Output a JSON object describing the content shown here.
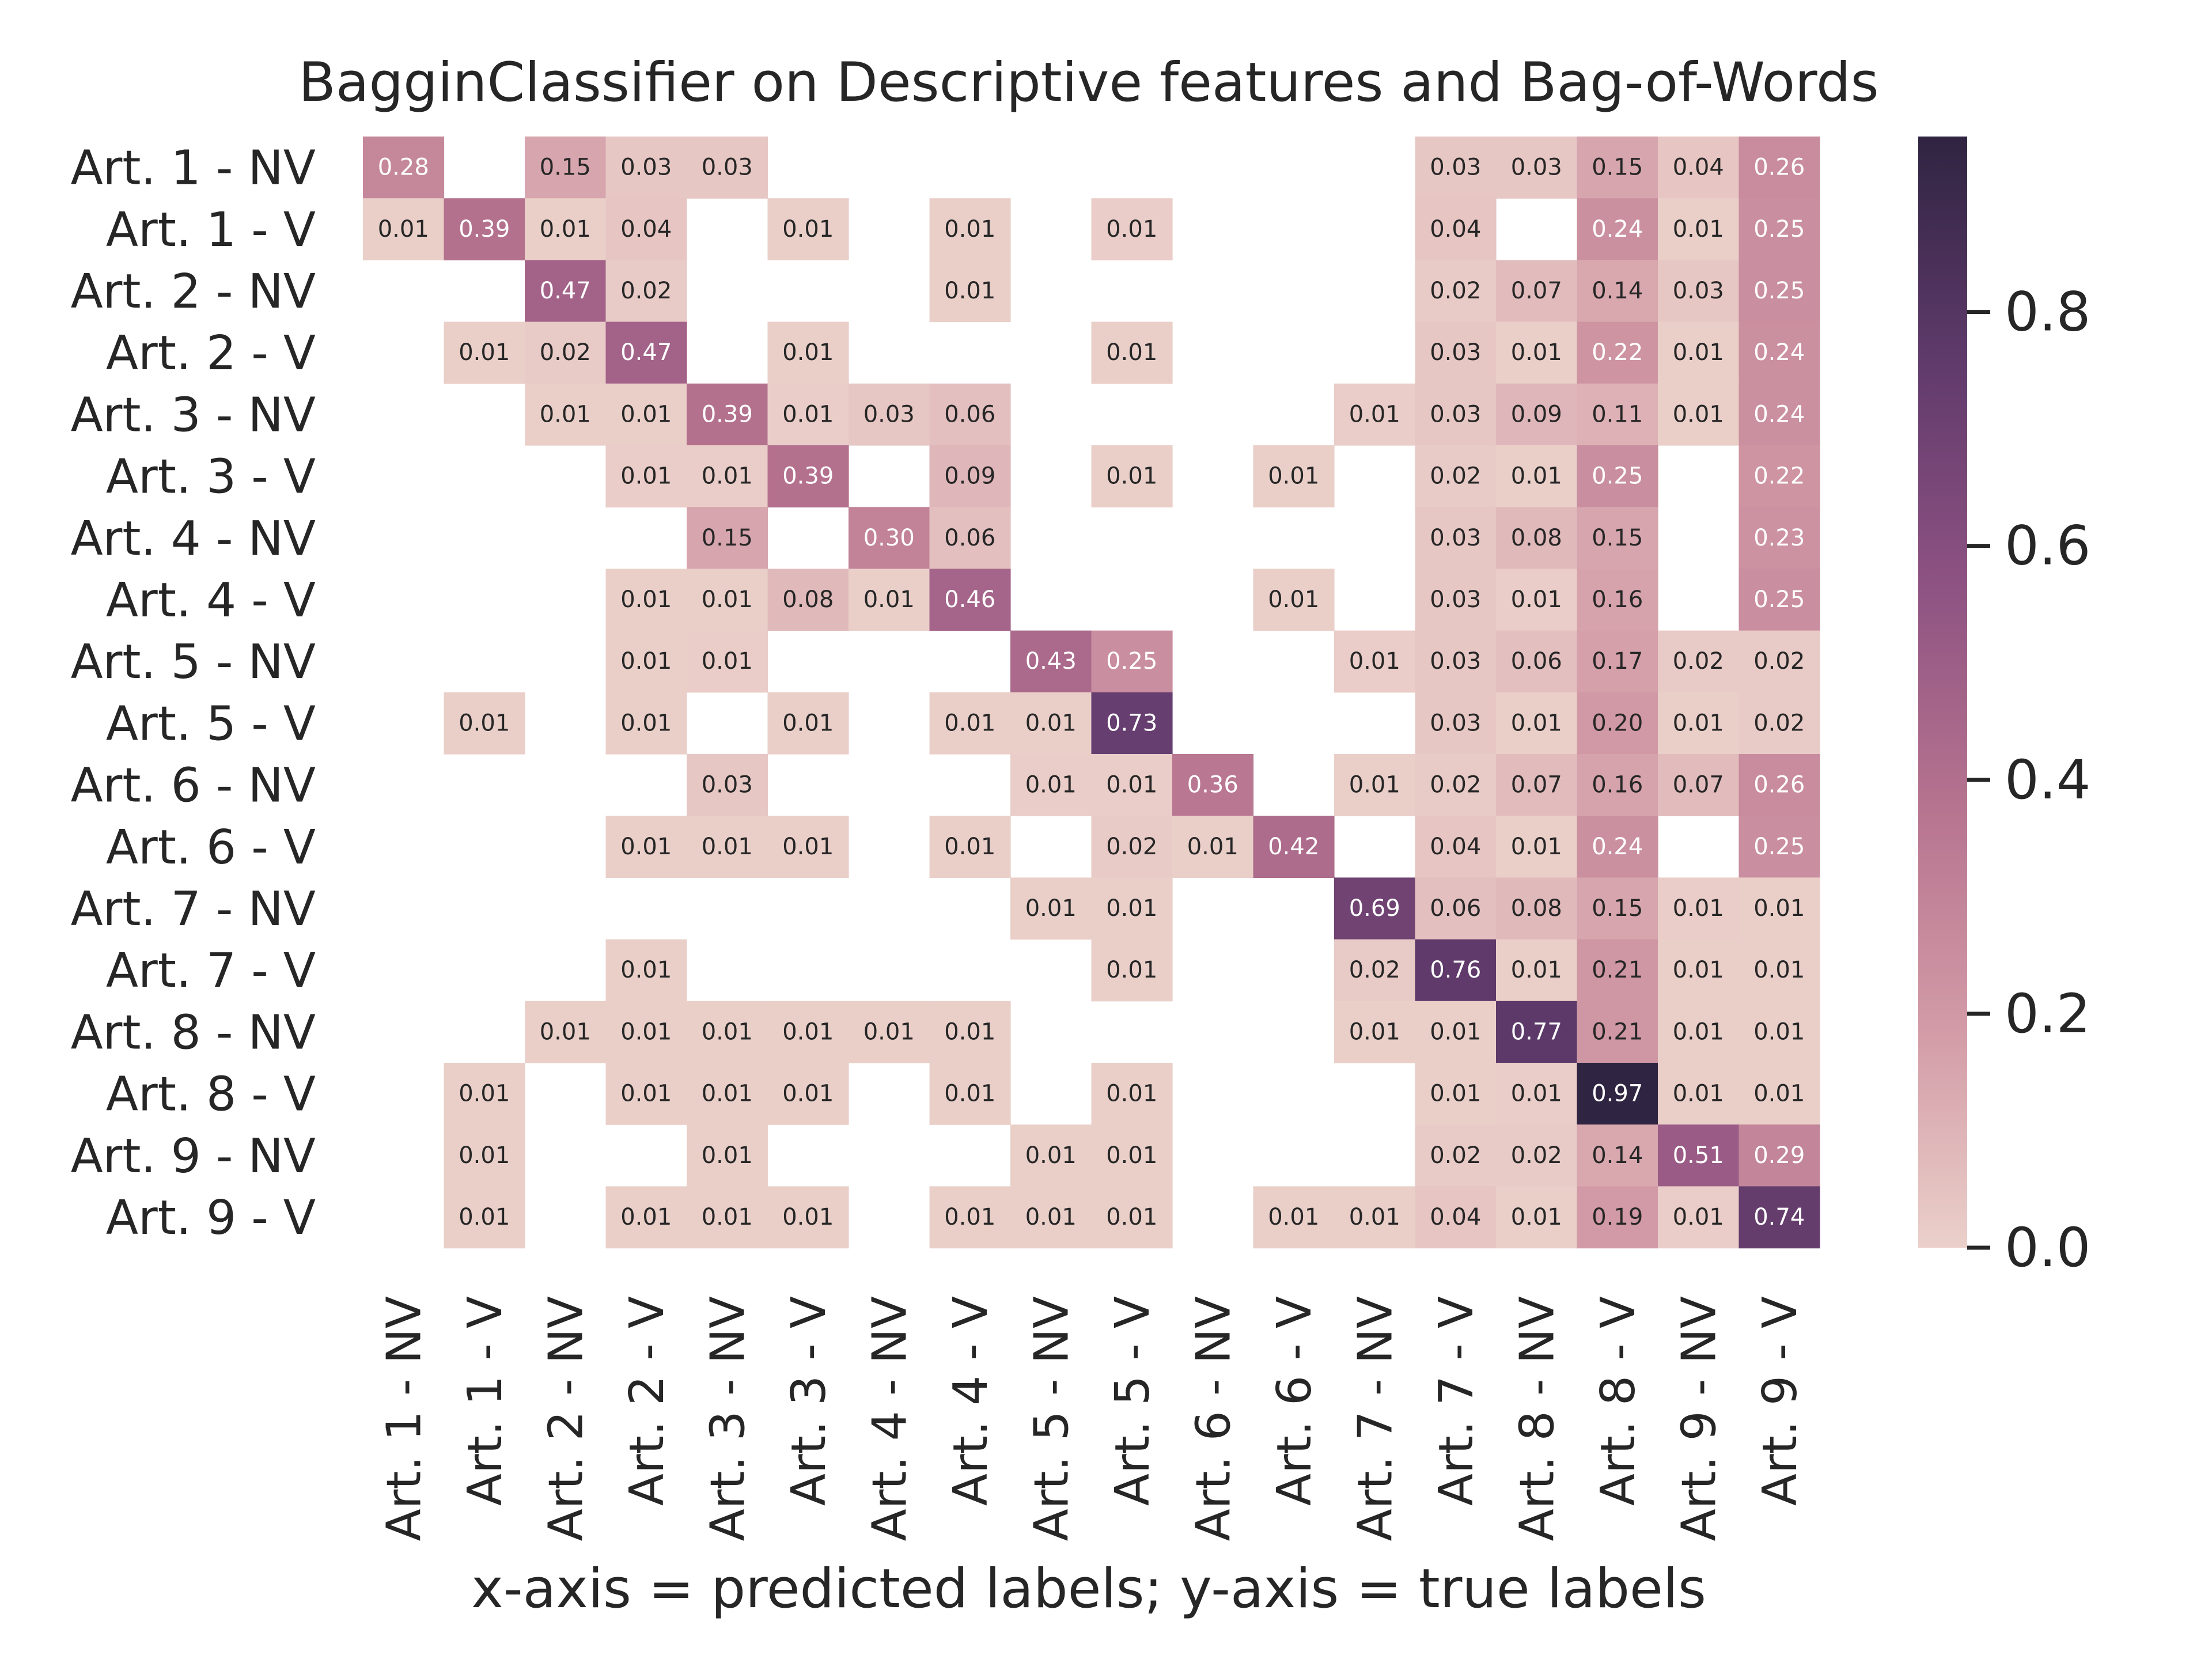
{
  "chart_data": {
    "type": "heatmap",
    "title": "BagginClassifier on Descriptive features and Bag-of-Words",
    "xlabel": "x-axis = predicted labels; y-axis = true labels",
    "ylabel": "",
    "labels": [
      "Art. 1 - NV",
      "Art. 1 - V",
      "Art. 2 - NV",
      "Art. 2 - V",
      "Art. 3 - NV",
      "Art. 3 - V",
      "Art. 4 - NV",
      "Art. 4 - V",
      "Art. 5 - NV",
      "Art. 5 - V",
      "Art. 6 - NV",
      "Art. 6 - V",
      "Art. 7 - NV",
      "Art. 7 - V",
      "Art. 8 - NV",
      "Art. 8 - V",
      "Art. 9 - NV",
      "Art. 9 - V"
    ],
    "colorbar": {
      "range": [
        0,
        0.95
      ],
      "ticks": [
        "0.0",
        "0.2",
        "0.4",
        "0.6",
        "0.8"
      ]
    },
    "colormap": [
      "#ebd0ca",
      "#d29aa6",
      "#b6738f",
      "#8d5282",
      "#5f3a6b",
      "#2f2441"
    ],
    "blank_color": "#ffffff",
    "matrix": [
      [
        0.28,
        null,
        0.15,
        0.03,
        0.03,
        null,
        null,
        null,
        null,
        null,
        null,
        null,
        null,
        0.03,
        0.03,
        0.15,
        0.04,
        0.26
      ],
      [
        0.005,
        0.39,
        0.005,
        0.04,
        null,
        0.005,
        null,
        0.005,
        null,
        0.01,
        null,
        null,
        null,
        0.04,
        null,
        0.24,
        0.005,
        0.25
      ],
      [
        null,
        null,
        0.47,
        0.02,
        null,
        null,
        null,
        0.005,
        null,
        null,
        null,
        null,
        null,
        0.02,
        0.07,
        0.14,
        0.03,
        0.25
      ],
      [
        null,
        0.005,
        0.02,
        0.47,
        null,
        0.005,
        null,
        null,
        null,
        0.005,
        null,
        null,
        null,
        0.03,
        0.005,
        0.22,
        0.005,
        0.24
      ],
      [
        null,
        null,
        0.005,
        0.005,
        0.39,
        0.01,
        0.03,
        0.06,
        null,
        null,
        null,
        null,
        0.01,
        0.03,
        0.09,
        0.11,
        0.005,
        0.24
      ],
      [
        null,
        null,
        null,
        0.01,
        0.01,
        0.39,
        null,
        0.09,
        null,
        0.005,
        null,
        0.005,
        null,
        0.02,
        0.005,
        0.25,
        null,
        0.22
      ],
      [
        null,
        null,
        null,
        null,
        0.15,
        null,
        0.3,
        0.06,
        null,
        null,
        null,
        null,
        null,
        0.03,
        0.08,
        0.15,
        null,
        0.23
      ],
      [
        null,
        null,
        null,
        0.005,
        0.005,
        0.08,
        0.005,
        0.46,
        null,
        null,
        null,
        0.005,
        null,
        0.03,
        0.01,
        0.16,
        null,
        0.25
      ],
      [
        null,
        null,
        null,
        0.005,
        0.01,
        null,
        null,
        null,
        0.43,
        0.25,
        null,
        null,
        0.01,
        0.03,
        0.06,
        0.17,
        0.02,
        0.02
      ],
      [
        null,
        0.005,
        null,
        0.005,
        null,
        0.005,
        null,
        0.005,
        0.005,
        0.73,
        null,
        null,
        null,
        0.03,
        0.005,
        0.2,
        0.005,
        0.02
      ],
      [
        null,
        null,
        null,
        null,
        0.03,
        null,
        null,
        null,
        0.01,
        0.01,
        0.36,
        null,
        0.005,
        0.02,
        0.07,
        0.16,
        0.07,
        0.26
      ],
      [
        null,
        null,
        null,
        0.005,
        0.005,
        0.005,
        null,
        0.005,
        null,
        0.02,
        0.005,
        0.42,
        null,
        0.04,
        0.005,
        0.24,
        null,
        0.25
      ],
      [
        null,
        null,
        null,
        null,
        null,
        null,
        null,
        null,
        0.005,
        0.005,
        null,
        null,
        0.69,
        0.06,
        0.08,
        0.15,
        0.01,
        0.005
      ],
      [
        null,
        null,
        null,
        0.005,
        null,
        null,
        null,
        null,
        null,
        0.005,
        null,
        null,
        0.02,
        0.76,
        0.005,
        0.21,
        0.005,
        0.005
      ],
      [
        null,
        null,
        0.005,
        0.005,
        0.005,
        0.005,
        0.005,
        0.005,
        null,
        null,
        null,
        null,
        0.005,
        0.005,
        0.77,
        0.21,
        0.005,
        0.005
      ],
      [
        null,
        0.005,
        null,
        0.005,
        0.005,
        0.005,
        null,
        0.005,
        null,
        0.005,
        null,
        null,
        null,
        0.005,
        0.01,
        0.97,
        0.005,
        0.005
      ],
      [
        null,
        0.005,
        null,
        null,
        0.005,
        null,
        null,
        null,
        0.005,
        0.005,
        null,
        null,
        null,
        0.02,
        0.02,
        0.14,
        0.51,
        0.29
      ],
      [
        null,
        0.005,
        null,
        0.005,
        0.005,
        0.005,
        null,
        0.005,
        0.005,
        0.005,
        null,
        0.005,
        0.005,
        0.04,
        0.005,
        0.19,
        0.01,
        0.74
      ]
    ]
  }
}
